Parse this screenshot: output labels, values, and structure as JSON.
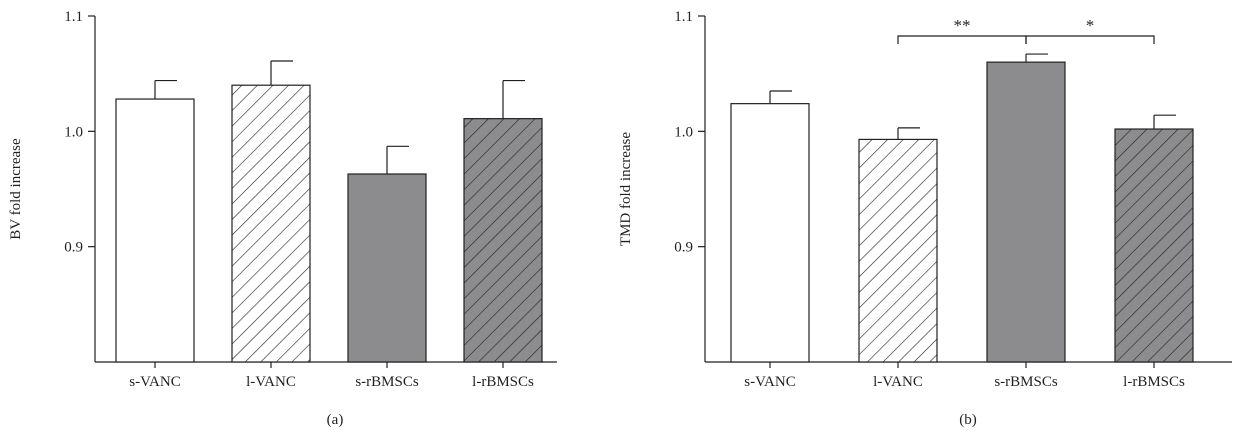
{
  "colors": {
    "ink": "#231f20",
    "gray": "#8c8c8e",
    "white": "#ffffff"
  },
  "chart_data": [
    {
      "type": "bar",
      "panel_label": "(a)",
      "ylabel": "BV fold increase",
      "xlabel": "",
      "ylim": [
        0.8,
        1.1
      ],
      "yticks": [
        0.9,
        1.0,
        1.1
      ],
      "ytick_labels": [
        "0.9",
        "1.0",
        "1.1"
      ],
      "categories": [
        "s-VANC",
        "l-VANC",
        "s-rBMSCs",
        "l-rBMSCs"
      ],
      "values": [
        1.028,
        1.04,
        0.963,
        1.011
      ],
      "errors": [
        0.016,
        0.021,
        0.024,
        0.033
      ],
      "fills": [
        "white",
        "hatch",
        "gray",
        "gray-hatch"
      ],
      "significance": []
    },
    {
      "type": "bar",
      "panel_label": "(b)",
      "ylabel": "TMD fold increase",
      "xlabel": "",
      "ylim": [
        0.8,
        1.1
      ],
      "yticks": [
        0.9,
        1.0,
        1.1
      ],
      "ytick_labels": [
        "0.9",
        "1.0",
        "1.1"
      ],
      "categories": [
        "s-VANC",
        "l-VANC",
        "s-rBMSCs",
        "l-rBMSCs"
      ],
      "values": [
        1.024,
        0.993,
        1.06,
        1.002
      ],
      "errors": [
        0.011,
        0.01,
        0.007,
        0.012
      ],
      "fills": [
        "white",
        "hatch",
        "gray",
        "gray-hatch"
      ],
      "significance": [
        {
          "from": 1,
          "to": 2,
          "label": "**"
        },
        {
          "from": 2,
          "to": 3,
          "label": "*"
        }
      ]
    }
  ]
}
